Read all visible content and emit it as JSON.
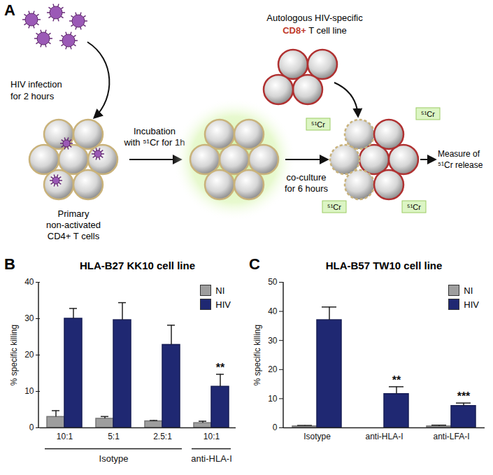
{
  "diagram": {
    "panel": "A",
    "infection": [
      "HIV infection",
      "for 2 hours"
    ],
    "target_cells": [
      "Primary",
      "non-activated",
      "CD4+ T cells"
    ],
    "labeling": [
      "Incubation",
      "with ⁵¹Cr for 1h"
    ],
    "effector": [
      "Autologous HIV-specific",
      "CD8+",
      "T cell line"
    ],
    "coculture": [
      "co-culture",
      "for 6 hours"
    ],
    "release_labels": [
      "⁵¹Cr",
      "⁵¹Cr",
      "⁵¹Cr",
      "⁵¹Cr"
    ],
    "readout": [
      "Measure of",
      "⁵¹Cr release"
    ]
  },
  "chart_data": [
    {
      "panel": "B",
      "type": "bar",
      "title": "HLA-B27 KK10 cell line",
      "y_label": "% specific killing",
      "categories": [
        "10:1",
        "5:1",
        "2.5:1",
        "10:1"
      ],
      "group_labels": [
        "Isotype",
        "Isotype",
        "Isotype",
        "anti-HLA-I"
      ],
      "series": [
        {
          "name": "NI",
          "color": "#9e9e9e",
          "values": [
            3.0,
            2.5,
            1.8,
            1.3
          ],
          "errors": [
            1.7,
            0.6,
            0.2,
            0.5
          ]
        },
        {
          "name": "HIV",
          "color": "#1f2872",
          "values": [
            30.0,
            29.6,
            22.8,
            11.3
          ],
          "errors": [
            2.8,
            4.8,
            5.4,
            3.4
          ],
          "significance": [
            null,
            null,
            null,
            "**"
          ]
        }
      ],
      "ylim": [
        0,
        40
      ],
      "yticks": [
        0,
        10,
        20,
        30,
        40
      ],
      "legend": "top-right"
    },
    {
      "panel": "C",
      "type": "bar",
      "title": "HLA-B57 TW10 cell line",
      "y_label": "% specific killing",
      "categories": [
        "Isotype",
        "anti-HLA-I",
        "anti-LFA-I"
      ],
      "series": [
        {
          "name": "NI",
          "color": "#9e9e9e",
          "values": [
            0.5,
            0,
            0.5
          ],
          "errors": [
            0.3,
            0,
            0.4
          ]
        },
        {
          "name": "HIV",
          "color": "#1f2872",
          "values": [
            37.0,
            11.6,
            7.5
          ],
          "errors": [
            4.5,
            2.5,
            1.0
          ],
          "significance": [
            null,
            "**",
            "***"
          ]
        }
      ],
      "ylim": [
        0,
        50
      ],
      "yticks": [
        0,
        10,
        20,
        30,
        40,
        50
      ],
      "legend": "top-right"
    }
  ]
}
